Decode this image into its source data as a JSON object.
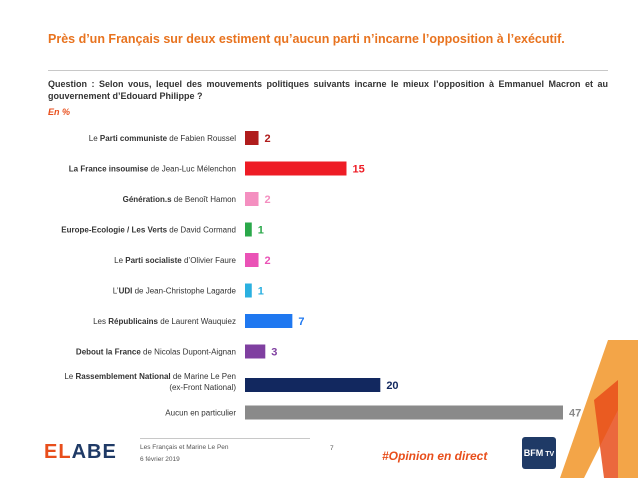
{
  "title": "Près d’un Français sur deux estiment qu’aucun parti n’incarne l’opposition à l’exécutif.",
  "question": "Question : Selon vous, lequel des mouvements politiques suivants incarne le mieux l’opposition à Emmanuel Macron et au gouvernement d’Edouard Philippe ?",
  "unit": "En %",
  "footer": {
    "brand_part1": "EL",
    "brand_part2": "ABE",
    "line1": "Les Français et Marine Le Pen",
    "line2": "6 février 2019",
    "page": "7",
    "hashtag": "#Opinion en direct",
    "partner_logo": "BFM TV"
  },
  "colors": {
    "title": "#e8731f",
    "accent": "#e84e1b",
    "brand_navy": "#1f3a66"
  },
  "chart_data": {
    "type": "bar",
    "orientation": "horizontal",
    "categories": [
      [
        {
          "t": "Le "
        },
        {
          "t": "Parti communiste",
          "b": true
        },
        {
          "t": " de Fabien Roussel"
        }
      ],
      [
        {
          "t": "La France insoumise",
          "b": true
        },
        {
          "t": " de Jean-Luc Mélenchon"
        }
      ],
      [
        {
          "t": "Génération.s",
          "b": true
        },
        {
          "t": " de Benoît Hamon"
        }
      ],
      [
        {
          "t": "Europe-Ecologie / Les Verts",
          "b": true
        },
        {
          "t": " de David Cormand"
        }
      ],
      [
        {
          "t": "Le "
        },
        {
          "t": "Parti socialiste",
          "b": true
        },
        {
          "t": " d’Olivier Faure"
        }
      ],
      [
        {
          "t": "L’"
        },
        {
          "t": "UDI",
          "b": true
        },
        {
          "t": " de Jean-Christophe Lagarde"
        }
      ],
      [
        {
          "t": "Les "
        },
        {
          "t": "Républicains",
          "b": true
        },
        {
          "t": " de Laurent Wauquiez"
        }
      ],
      [
        {
          "t": "Debout la France",
          "b": true
        },
        {
          "t": " de Nicolas Dupont-Aignan"
        }
      ],
      [
        {
          "t": "Le "
        },
        {
          "t": "Rassemblement National",
          "b": true
        },
        {
          "t": " de Marine Le Pen"
        },
        {
          "t": "(ex-Front National)",
          "br": true
        }
      ],
      [
        {
          "t": "Aucun en particulier"
        }
      ]
    ],
    "values": [
      2,
      15,
      2,
      1,
      2,
      1,
      7,
      3,
      20,
      47
    ],
    "colors": [
      "#b01c1c",
      "#ee1c25",
      "#f48fc0",
      "#2aa84a",
      "#ea52b6",
      "#2ab0e0",
      "#1f78f0",
      "#7f3fa0",
      "#12285f",
      "#8a8a8a"
    ],
    "label_colors": [
      "#b01c1c",
      "#ee1c25",
      "#f48fc0",
      "#2aa84a",
      "#ea52b6",
      "#2ab0e0",
      "#1f78f0",
      "#7f3fa0",
      "#12285f",
      "#8a8a8a"
    ],
    "xlim": [
      0,
      47
    ],
    "grid": false,
    "legend": "none"
  }
}
